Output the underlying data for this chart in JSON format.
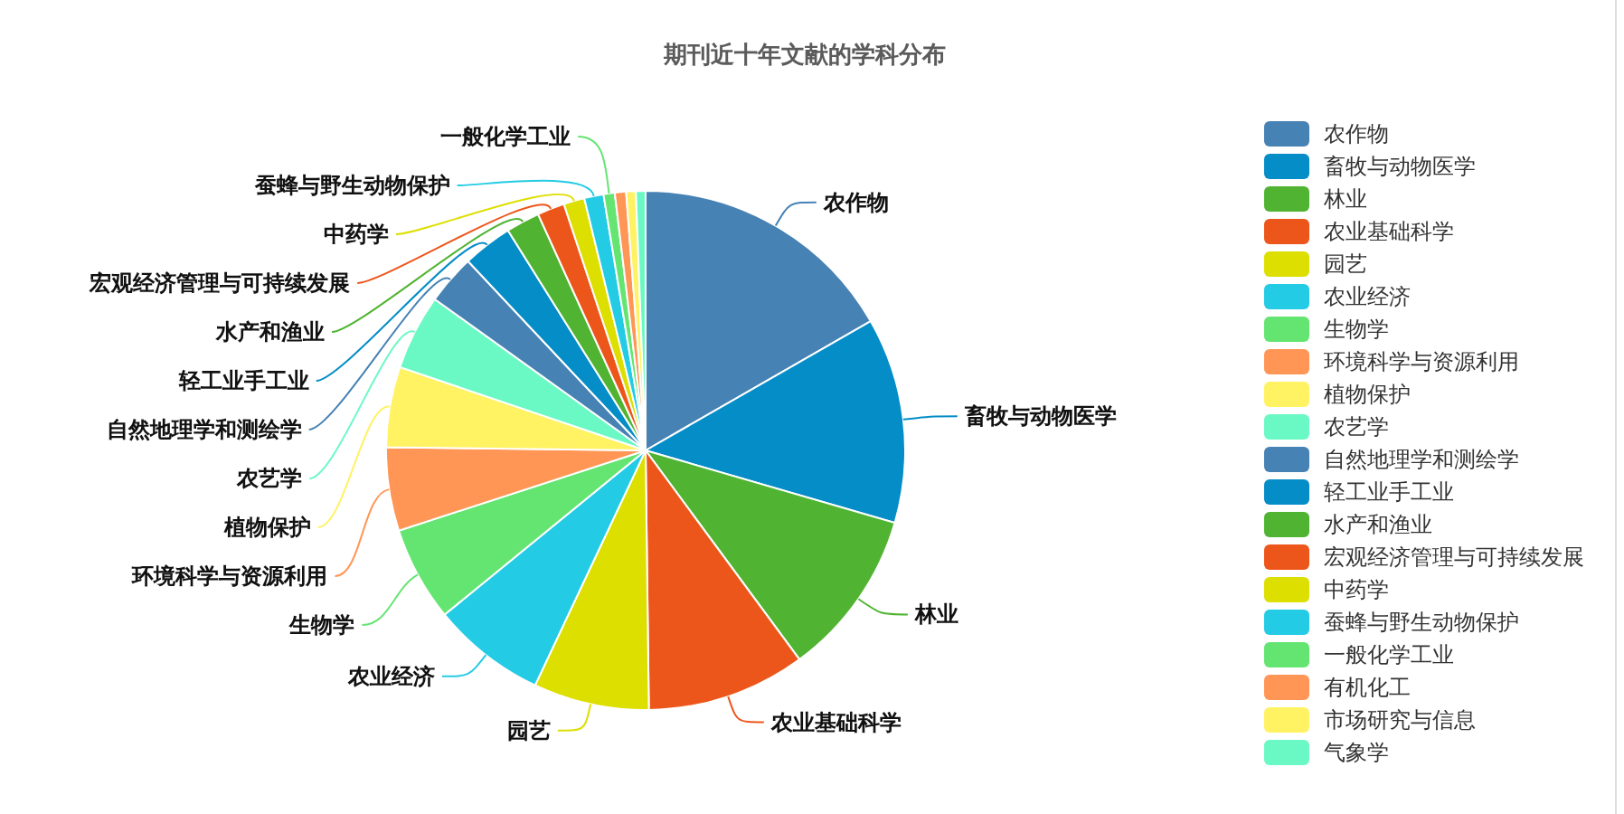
{
  "chart_data": {
    "type": "pie",
    "title": "期刊近十年文献的学科分布",
    "categories": [
      "农作物",
      "畜牧与动物医学",
      "林业",
      "农业基础科学",
      "园艺",
      "农业经济",
      "生物学",
      "环境科学与资源利用",
      "植物保护",
      "农艺学",
      "自然地理学和测绘学",
      "轻工业手工业",
      "水产和渔业",
      "宏观经济管理与可持续发展",
      "中药学",
      "蚕蜂与野生动物保护",
      "一般化学工业",
      "有机化工",
      "市场研究与信息",
      "气象学"
    ],
    "values": [
      16.7,
      12.8,
      10.4,
      9.9,
      7.2,
      7.1,
      5.9,
      5.2,
      5.0,
      4.7,
      3.1,
      3.1,
      2.1,
      1.7,
      1.3,
      1.2,
      0.7,
      0.7,
      0.6,
      0.6
    ],
    "colors": [
      "#4682b4",
      "#058dc7",
      "#50b432",
      "#ed561b",
      "#dddf00",
      "#24cbe5",
      "#64e572",
      "#ff9655",
      "#fff263",
      "#6af9c4",
      "#4682b4",
      "#058dc7",
      "#50b432",
      "#ed561b",
      "#dddf00",
      "#24cbe5",
      "#64e572",
      "#ff9655",
      "#fff263",
      "#6af9c4"
    ],
    "legend": "right"
  }
}
